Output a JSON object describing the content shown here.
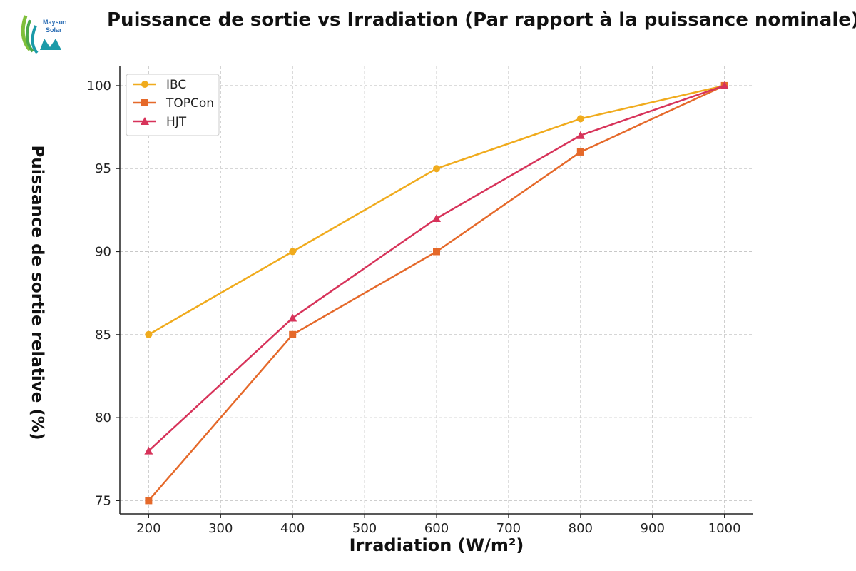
{
  "logo": {
    "text_line1": "Maysun",
    "text_line2": "Solar",
    "colors": [
      "#7fbf3a",
      "#1a9aa8",
      "#2d6fb5"
    ]
  },
  "chart_data": {
    "type": "line",
    "title": "Puissance de sortie vs Irradiation (Par rapport à la puissance nominale)",
    "xlabel": "Irradiation (W/m²)",
    "ylabel": "Puissance de sortie relative (%)",
    "x": [
      200,
      400,
      600,
      800,
      1000
    ],
    "xlim": [
      160,
      1040
    ],
    "ylim": [
      74.2,
      101.2
    ],
    "xticks": [
      200,
      300,
      400,
      500,
      600,
      700,
      800,
      900,
      1000
    ],
    "yticks": [
      75,
      80,
      85,
      90,
      95,
      100
    ],
    "grid": true,
    "legend_position": "top-left",
    "series": [
      {
        "name": "IBC",
        "values": [
          85,
          90,
          95,
          98,
          100
        ],
        "color": "#f0ab1d",
        "marker": "circle"
      },
      {
        "name": "TOPCon",
        "values": [
          75,
          85,
          90,
          96,
          100
        ],
        "color": "#e5692a",
        "marker": "square"
      },
      {
        "name": "HJT",
        "values": [
          78,
          86,
          92,
          97,
          100
        ],
        "color": "#d7335a",
        "marker": "triangle"
      }
    ]
  }
}
